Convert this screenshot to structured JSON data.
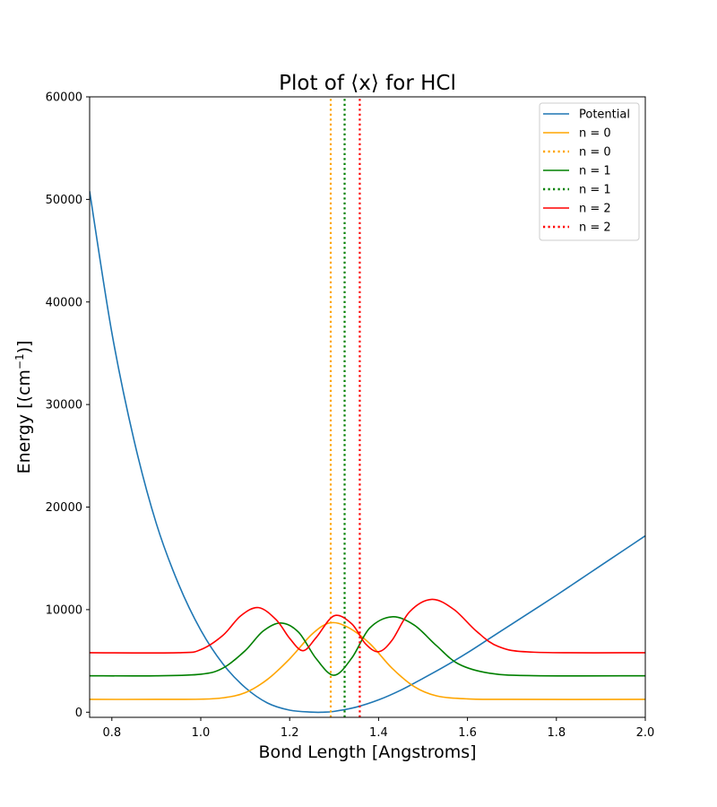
{
  "chart_data": {
    "type": "line",
    "title": "Plot of ⟨x⟩ for HCl",
    "xlabel": "Bond Length [Angstroms]",
    "ylabel": "Energy [(cm⁻¹)]",
    "xlim": [
      0.75,
      2.0
    ],
    "ylim": [
      -500,
      60000
    ],
    "xticks": [
      0.8,
      1.0,
      1.2,
      1.4,
      1.6,
      1.8,
      2.0
    ],
    "xtick_labels": [
      "0.8",
      "1.0",
      "1.2",
      "1.4",
      "1.6",
      "1.8",
      "2.0"
    ],
    "yticks": [
      0,
      10000,
      20000,
      30000,
      40000,
      50000,
      60000
    ],
    "ytick_labels": [
      "0",
      "10000",
      "20000",
      "30000",
      "40000",
      "50000",
      "60000"
    ],
    "grid": false,
    "legend_position": "top-right",
    "series": [
      {
        "name": "Potential",
        "style": "solid",
        "color": "#1f77b4",
        "x": [
          0.75,
          0.8,
          0.85,
          0.9,
          0.95,
          1.0,
          1.05,
          1.1,
          1.15,
          1.2,
          1.25,
          1.2746,
          1.3,
          1.35,
          1.4,
          1.45,
          1.5,
          1.55,
          1.6,
          1.65,
          1.7,
          1.75,
          1.8,
          1.85,
          1.9,
          1.95,
          2.0
        ],
        "y": [
          50800,
          37000,
          26500,
          18400,
          12500,
          8000,
          4700,
          2400,
          900,
          200,
          10,
          0,
          80,
          500,
          1200,
          2150,
          3300,
          4500,
          5800,
          7200,
          8600,
          10000,
          11400,
          12850,
          14300,
          15750,
          17200
        ]
      },
      {
        "name": "n = 0",
        "style": "solid",
        "color": "#ffa500",
        "x": [
          0.75,
          0.9,
          1.0,
          1.05,
          1.1,
          1.15,
          1.2,
          1.25,
          1.29,
          1.33,
          1.38,
          1.43,
          1.48,
          1.53,
          1.6,
          1.7,
          2.0
        ],
        "y": [
          1250,
          1250,
          1270,
          1400,
          1900,
          3200,
          5200,
          7600,
          8700,
          8300,
          6700,
          4300,
          2500,
          1600,
          1300,
          1250,
          1250
        ]
      },
      {
        "name": "n = 0",
        "style": "dotted",
        "color": "#ffa500",
        "x": [
          1.2924,
          1.2924
        ],
        "y": [
          -500,
          60000
        ]
      },
      {
        "name": "n = 1",
        "style": "solid",
        "color": "#008000",
        "x": [
          0.75,
          0.9,
          1.0,
          1.05,
          1.1,
          1.14,
          1.18,
          1.22,
          1.26,
          1.3,
          1.34,
          1.38,
          1.43,
          1.48,
          1.53,
          1.58,
          1.65,
          1.75,
          2.0
        ],
        "y": [
          3550,
          3550,
          3700,
          4300,
          6000,
          7900,
          8700,
          7800,
          5200,
          3600,
          5300,
          8200,
          9300,
          8500,
          6500,
          4700,
          3800,
          3560,
          3550
        ]
      },
      {
        "name": "n = 1",
        "style": "dotted",
        "color": "#008000",
        "x": [
          1.3236,
          1.3236
        ],
        "y": [
          -500,
          60000
        ]
      },
      {
        "name": "n = 2",
        "style": "solid",
        "color": "#ff0000",
        "x": [
          0.75,
          0.95,
          1.0,
          1.05,
          1.09,
          1.13,
          1.17,
          1.2,
          1.23,
          1.26,
          1.3,
          1.34,
          1.37,
          1.4,
          1.43,
          1.47,
          1.52,
          1.57,
          1.62,
          1.67,
          1.75,
          2.0
        ],
        "y": [
          5800,
          5800,
          6100,
          7500,
          9400,
          10200,
          9000,
          7200,
          6000,
          7300,
          9400,
          8600,
          6700,
          5900,
          7000,
          9800,
          11000,
          10000,
          7900,
          6400,
          5850,
          5800
        ]
      },
      {
        "name": "n = 2",
        "style": "dotted",
        "color": "#ff0000",
        "x": [
          1.3577,
          1.3577
        ],
        "y": [
          -500,
          60000
        ]
      }
    ]
  }
}
